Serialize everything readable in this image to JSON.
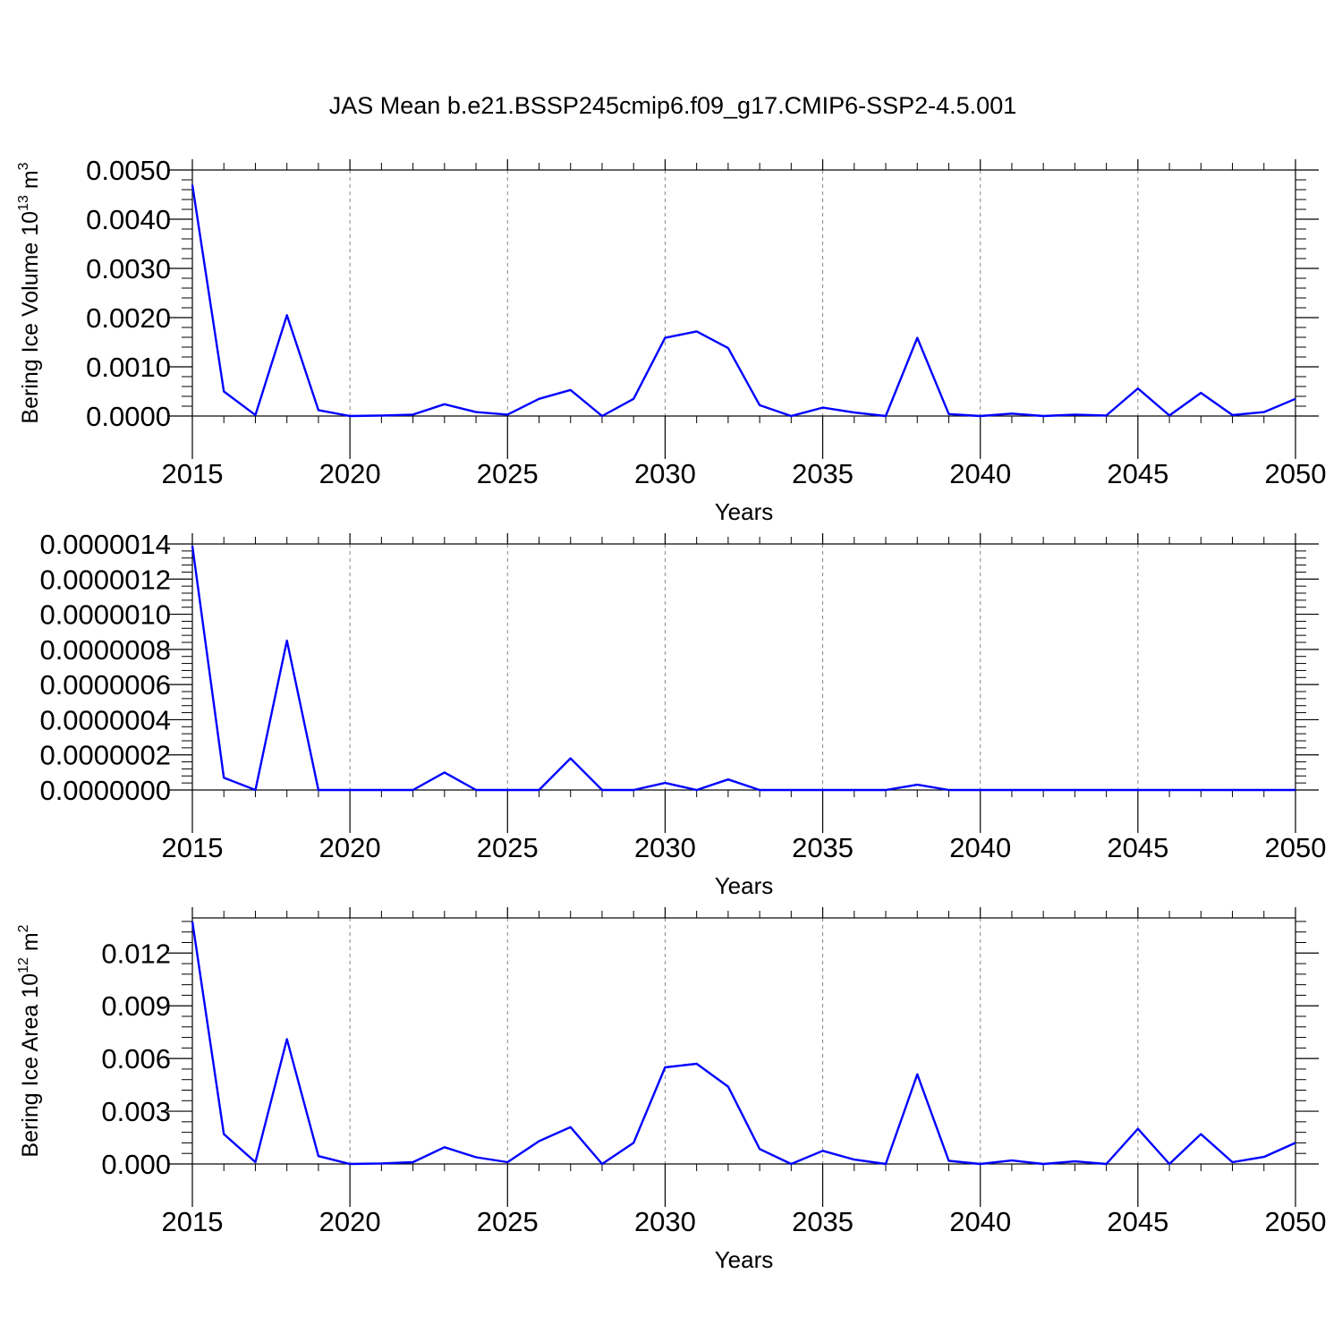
{
  "title": "JAS Mean b.e21.BSSP245cmip6.f09_g17.CMIP6-SSP2-4.5.001",
  "colors": {
    "line": "#0000ff",
    "axis": "#000000",
    "grid": "#888888",
    "background": "#ffffff"
  },
  "chart_data": [
    {
      "type": "line",
      "xlabel": "Years",
      "ylabel": {
        "base": "Bering Ice Volume 10",
        "exp": "13",
        "unit": " m",
        "unit_exp": "3"
      },
      "xlim": [
        2015,
        2050
      ],
      "ylim": [
        0,
        0.005
      ],
      "x_ticks": [
        "2015",
        "2020",
        "2025",
        "2030",
        "2035",
        "2040",
        "2045",
        "2050"
      ],
      "y_ticks": [
        {
          "v": 0.0,
          "label": "0.0000"
        },
        {
          "v": 0.001,
          "label": "0.0010"
        },
        {
          "v": 0.002,
          "label": "0.0020"
        },
        {
          "v": 0.003,
          "label": "0.0030"
        },
        {
          "v": 0.004,
          "label": "0.0040"
        },
        {
          "v": 0.005,
          "label": "0.0050"
        }
      ],
      "grid": "vertical dashed at labeled years",
      "x": [
        2015,
        2016,
        2017,
        2018,
        2019,
        2020,
        2021,
        2022,
        2023,
        2024,
        2025,
        2026,
        2027,
        2028,
        2029,
        2030,
        2031,
        2032,
        2033,
        2034,
        2035,
        2036,
        2037,
        2038,
        2039,
        2040,
        2041,
        2042,
        2043,
        2044,
        2045,
        2046,
        2047,
        2048,
        2049,
        2050
      ],
      "values": [
        0.0047,
        0.0005,
        2e-05,
        0.00205,
        0.00012,
        0.0,
        1e-05,
        3e-05,
        0.00024,
        8e-05,
        3e-05,
        0.00035,
        0.00053,
        0.0,
        0.00035,
        0.00159,
        0.00172,
        0.00138,
        0.00022,
        0.0,
        0.00017,
        7e-05,
        0.0,
        0.00159,
        4e-05,
        0.0,
        5e-05,
        0.0,
        3e-05,
        1e-05,
        0.00056,
        1e-05,
        0.00047,
        2e-05,
        8e-05,
        0.00035
      ]
    },
    {
      "type": "line",
      "xlabel": "Years",
      "ylabel": null,
      "xlim": [
        2015,
        2050
      ],
      "ylim": [
        0,
        1.4e-06
      ],
      "x_ticks": [
        "2015",
        "2020",
        "2025",
        "2030",
        "2035",
        "2040",
        "2045",
        "2050"
      ],
      "y_ticks": [
        {
          "v": 0.0,
          "label": "0.0000000"
        },
        {
          "v": 2e-07,
          "label": "0.0000002"
        },
        {
          "v": 4e-07,
          "label": "0.0000004"
        },
        {
          "v": 6e-07,
          "label": "0.0000006"
        },
        {
          "v": 8e-07,
          "label": "0.0000008"
        },
        {
          "v": 1e-06,
          "label": "0.0000010"
        },
        {
          "v": 1.2e-06,
          "label": "0.0000012"
        },
        {
          "v": 1.4e-06,
          "label": "0.0000014"
        }
      ],
      "grid": "vertical dashed at labeled years",
      "x": [
        2015,
        2016,
        2017,
        2018,
        2019,
        2020,
        2021,
        2022,
        2023,
        2024,
        2025,
        2026,
        2027,
        2028,
        2029,
        2030,
        2031,
        2032,
        2033,
        2034,
        2035,
        2036,
        2037,
        2038,
        2039,
        2040,
        2041,
        2042,
        2043,
        2044,
        2045,
        2046,
        2047,
        2048,
        2049,
        2050
      ],
      "values": [
        1.39e-06,
        7e-08,
        0.0,
        8.5e-07,
        0.0,
        0.0,
        0.0,
        0.0,
        1e-07,
        0.0,
        0.0,
        0.0,
        1.8e-07,
        0.0,
        0.0,
        4e-08,
        0.0,
        6e-08,
        0.0,
        0.0,
        0.0,
        0.0,
        0.0,
        3e-08,
        0.0,
        0.0,
        0.0,
        0.0,
        0.0,
        0.0,
        0.0,
        0.0,
        0.0,
        0.0,
        0.0,
        0.0
      ]
    },
    {
      "type": "line",
      "xlabel": "Years",
      "ylabel": {
        "base": "Bering Ice Area 10",
        "exp": "12",
        "unit": " m",
        "unit_exp": "2"
      },
      "xlim": [
        2015,
        2050
      ],
      "ylim": [
        0,
        0.014
      ],
      "x_ticks": [
        "2015",
        "2020",
        "2025",
        "2030",
        "2035",
        "2040",
        "2045",
        "2050"
      ],
      "y_ticks": [
        {
          "v": 0.0,
          "label": "0.000"
        },
        {
          "v": 0.003,
          "label": "0.003"
        },
        {
          "v": 0.006,
          "label": "0.006"
        },
        {
          "v": 0.009,
          "label": "0.009"
        },
        {
          "v": 0.012,
          "label": "0.012"
        }
      ],
      "grid": "vertical dashed at labeled years",
      "x": [
        2015,
        2016,
        2017,
        2018,
        2019,
        2020,
        2021,
        2022,
        2023,
        2024,
        2025,
        2026,
        2027,
        2028,
        2029,
        2030,
        2031,
        2032,
        2033,
        2034,
        2035,
        2036,
        2037,
        2038,
        2039,
        2040,
        2041,
        2042,
        2043,
        2044,
        2045,
        2046,
        2047,
        2048,
        2049,
        2050
      ],
      "values": [
        0.0138,
        0.0017,
        0.0001,
        0.0071,
        0.00045,
        0.0,
        3e-05,
        0.0001,
        0.00095,
        0.00038,
        0.0001,
        0.0013,
        0.0021,
        0.0,
        0.0012,
        0.0055,
        0.0057,
        0.0044,
        0.00085,
        0.0,
        0.00075,
        0.00025,
        0.0,
        0.0051,
        0.00018,
        0.0,
        0.0002,
        0.0,
        0.00015,
        0.0,
        0.002,
        0.0,
        0.0017,
        0.0001,
        0.0004,
        0.0012
      ]
    }
  ]
}
